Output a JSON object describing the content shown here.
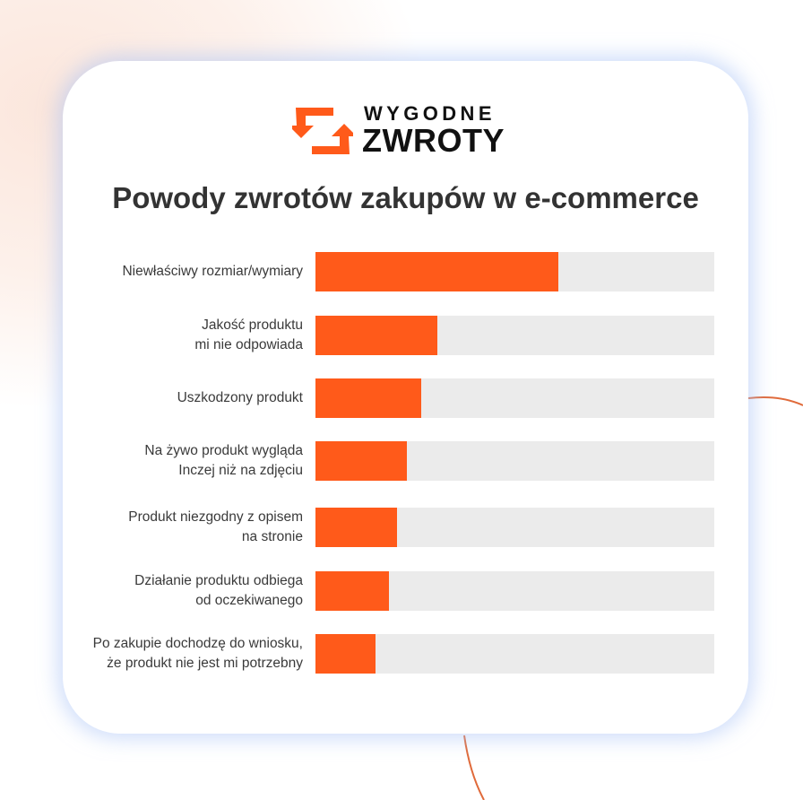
{
  "brand": {
    "line1": "WYGODNE",
    "line2": "ZWROTY",
    "logo_icon": "return-arrows-icon",
    "accent_color": "#ff5a1a"
  },
  "chart_data": {
    "type": "bar",
    "orientation": "horizontal",
    "title": "Powody zwrotów zakupów w e-commerce",
    "xlabel": "",
    "ylabel": "",
    "xlim": [
      0,
      100
    ],
    "grid": false,
    "bar_color": "#ff5a1a",
    "track_color": "#ebebeb",
    "categories": [
      "Niewłaściwy rozmiar/wymiary",
      "Jakość produktu\nmi nie odpowiada",
      "Uszkodzony produkt",
      "Na żywo produkt wygląda\nInczej niż na zdjęciu",
      "Produkt niezgodny z opisem\nna stronie",
      "Działanie produktu odbiega\nod oczekiwanego",
      "Po zakupie dochodzę do wniosku,\nże produkt nie jest mi potrzebny"
    ],
    "values": [
      61,
      30.5,
      26.5,
      23,
      20.5,
      18.5,
      15
    ]
  }
}
